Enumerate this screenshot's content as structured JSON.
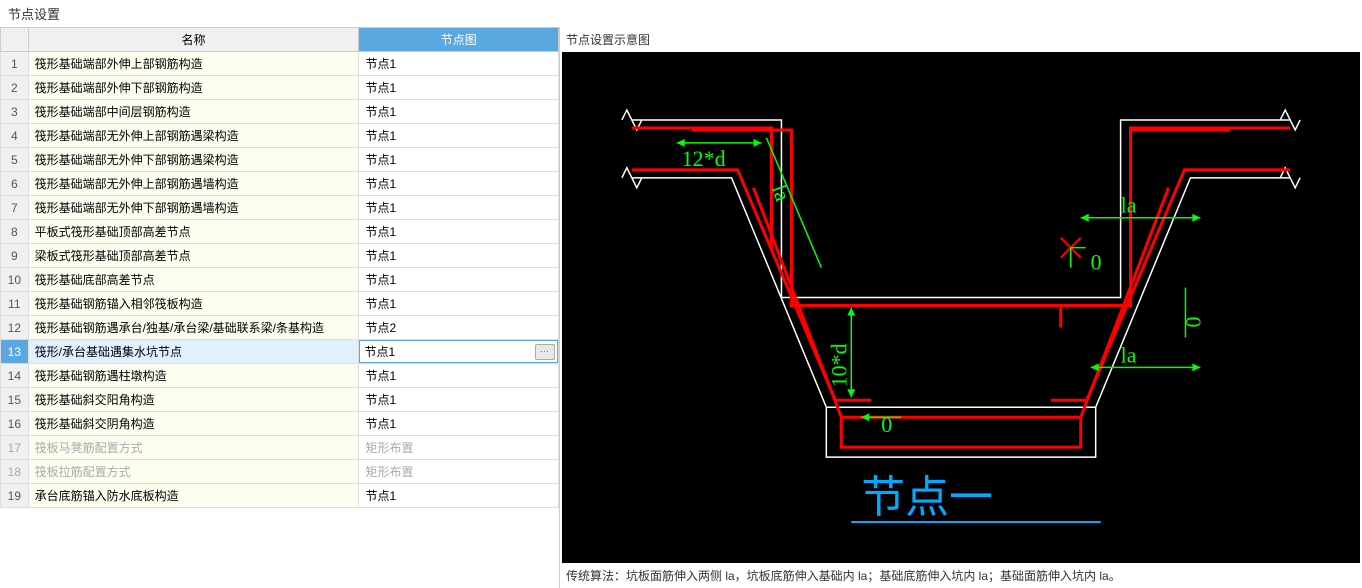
{
  "title": "节点设置",
  "columns": {
    "name": "名称",
    "diagram": "节点图"
  },
  "rows": [
    {
      "num": "1",
      "name": "筏形基础端部外伸上部钢筋构造",
      "diagram": "节点1"
    },
    {
      "num": "2",
      "name": "筏形基础端部外伸下部钢筋构造",
      "diagram": "节点1"
    },
    {
      "num": "3",
      "name": "筏形基础端部中间层钢筋构造",
      "diagram": "节点1"
    },
    {
      "num": "4",
      "name": "筏形基础端部无外伸上部钢筋遇梁构造",
      "diagram": "节点1"
    },
    {
      "num": "5",
      "name": "筏形基础端部无外伸下部钢筋遇梁构造",
      "diagram": "节点1"
    },
    {
      "num": "6",
      "name": "筏形基础端部无外伸上部钢筋遇墙构造",
      "diagram": "节点1"
    },
    {
      "num": "7",
      "name": "筏形基础端部无外伸下部钢筋遇墙构造",
      "diagram": "节点1"
    },
    {
      "num": "8",
      "name": "平板式筏形基础顶部高差节点",
      "diagram": "节点1"
    },
    {
      "num": "9",
      "name": "梁板式筏形基础顶部高差节点",
      "diagram": "节点1"
    },
    {
      "num": "10",
      "name": "筏形基础底部高差节点",
      "diagram": "节点1"
    },
    {
      "num": "11",
      "name": "筏形基础钢筋锚入相邻筏板构造",
      "diagram": "节点1"
    },
    {
      "num": "12",
      "name": "筏形基础钢筋遇承台/独基/承台梁/基础联系梁/条基构造",
      "diagram": "节点2"
    },
    {
      "num": "13",
      "name": "筏形/承台基础遇集水坑节点",
      "diagram": "节点1",
      "selected": true
    },
    {
      "num": "14",
      "name": "筏形基础钢筋遇柱墩构造",
      "diagram": "节点1"
    },
    {
      "num": "15",
      "name": "筏形基础斜交阳角构造",
      "diagram": "节点1"
    },
    {
      "num": "16",
      "name": "筏形基础斜交阴角构造",
      "diagram": "节点1"
    },
    {
      "num": "17",
      "name": "筏板马凳筋配置方式",
      "diagram": "矩形布置",
      "disabled": true
    },
    {
      "num": "18",
      "name": "筏板拉筋配置方式",
      "diagram": "矩形布置",
      "disabled": true
    },
    {
      "num": "19",
      "name": "承台底筋锚入防水底板构造",
      "diagram": "节点1"
    }
  ],
  "preview": {
    "label": "节点设置示意图",
    "title": "节点一",
    "caption": "传统算法：坑板面筋伸入两侧 la，坑板底筋伸入基础内 la；基础底筋伸入坑内 la；基础面筋伸入坑内 la。",
    "labels": {
      "d12": "12*d",
      "la1": "la",
      "la2": "la",
      "la3": "la",
      "d10": "10*d",
      "zero1": "0",
      "zero2": "0",
      "zero3": "0"
    }
  },
  "style": {
    "diagram": {
      "bg": "#000000",
      "rebars": "#ff0000",
      "dims": "#00ff00",
      "outline": "#ffffff",
      "text_title": "#00aaff",
      "font_dim": 22,
      "font_title": 44
    }
  },
  "ellipsis": "⋯"
}
